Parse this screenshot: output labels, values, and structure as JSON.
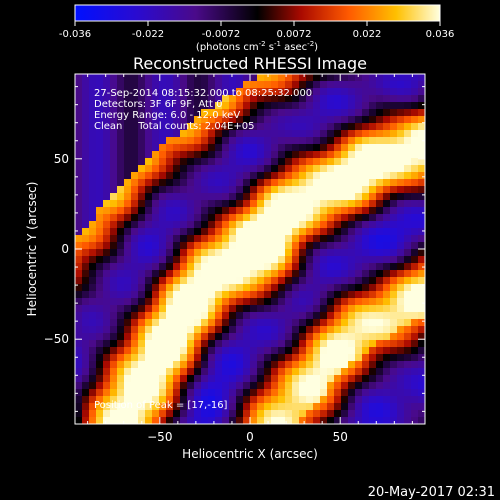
{
  "chart_data": {
    "type": "heatmap",
    "title": "Reconstructed RHESSI Image",
    "xlabel": "Heliocentric X (arcsec)",
    "ylabel": "Heliocentric Y (arcsec)",
    "xlim": [
      -97,
      97
    ],
    "ylim": [
      -97,
      97
    ],
    "x_ticks": [
      -50,
      0,
      50
    ],
    "y_ticks": [
      -50,
      0,
      50
    ],
    "colorbar": {
      "ticks": [
        "-0.036",
        "-0.022",
        "-0.0072",
        "0.0072",
        "0.022",
        "0.036"
      ],
      "label_main": "(photons cm",
      "label_exp1": "-2",
      "label_mid": " s",
      "label_exp2": "-1",
      "label_after": " asec",
      "label_exp3": "-2",
      "label_close": ")",
      "range": [
        -0.036,
        0.036
      ]
    },
    "annotations": [
      "27-Sep-2014 08:15:32.000 to 08:25:32.000",
      "Detectors: 3F 6F 9F, Att 0",
      "Energy Range: 6.0 - 12.0 keV",
      "Clean     Total counts: 2.04E+05"
    ],
    "peak_label": "Position of Peak = [17,-16]",
    "peak": [
      17,
      -16
    ],
    "grid": false
  },
  "footer": {
    "timestamp": "20-May-2017 02:31"
  },
  "colors": {
    "background": "#000000",
    "frame": "#ffffff",
    "text": "#ffffff"
  }
}
